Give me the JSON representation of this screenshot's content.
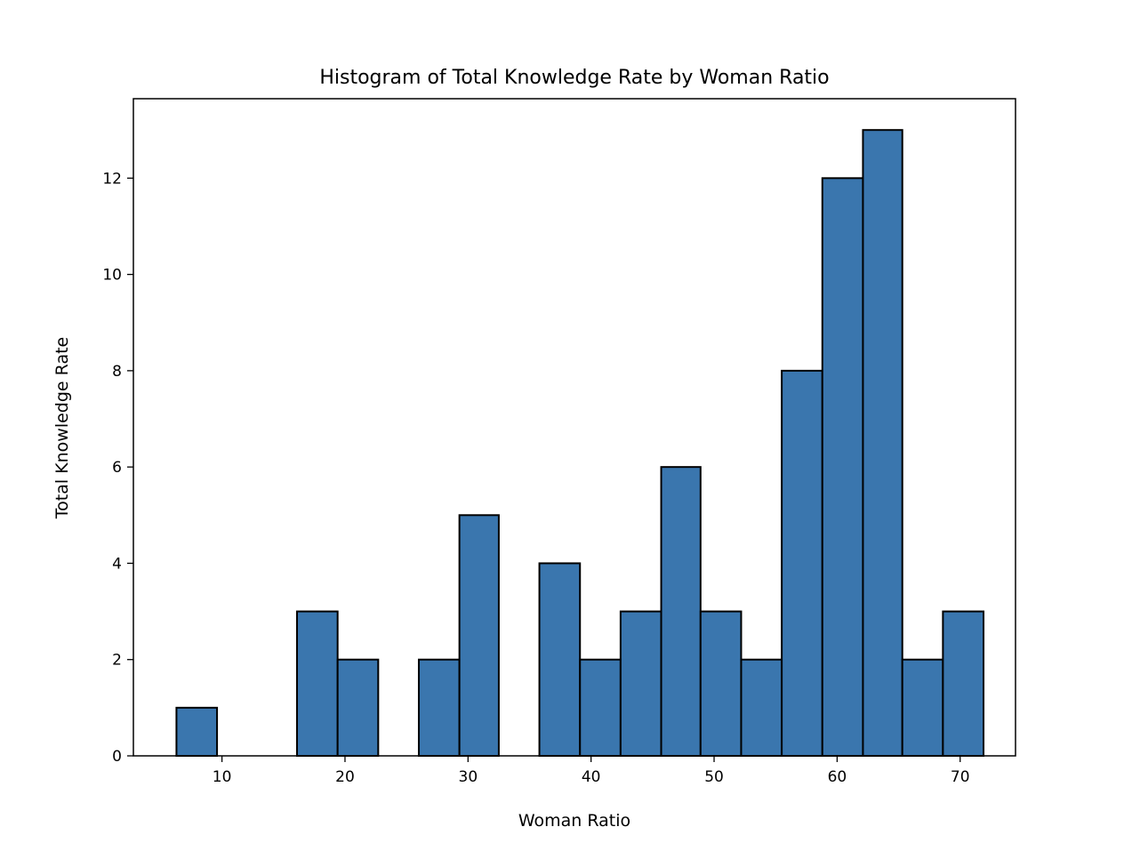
{
  "chart_data": {
    "type": "bar",
    "title": "Histogram of Total Knowledge Rate by Woman Ratio",
    "xlabel": "Woman Ratio",
    "ylabel": "Total Knowledge Rate",
    "xlim": [
      2.8,
      74.5
    ],
    "ylim": [
      0,
      13.65
    ],
    "xticks": [
      10,
      20,
      30,
      40,
      50,
      60,
      70
    ],
    "yticks": [
      0,
      2,
      4,
      6,
      8,
      10,
      12
    ],
    "bin_edges": [
      6.3,
      9.6,
      12.9,
      16.1,
      19.4,
      22.7,
      26.0,
      29.3,
      32.5,
      35.8,
      39.1,
      42.4,
      45.7,
      48.9,
      52.2,
      55.5,
      58.8,
      62.1,
      65.3,
      68.6,
      71.9
    ],
    "values": [
      1,
      0,
      0,
      3,
      2,
      0,
      2,
      5,
      0,
      4,
      2,
      3,
      6,
      3,
      2,
      8,
      12,
      13,
      2,
      3
    ],
    "bar_color": "#3a76ae",
    "edge_color": "#000000",
    "grid": false
  }
}
